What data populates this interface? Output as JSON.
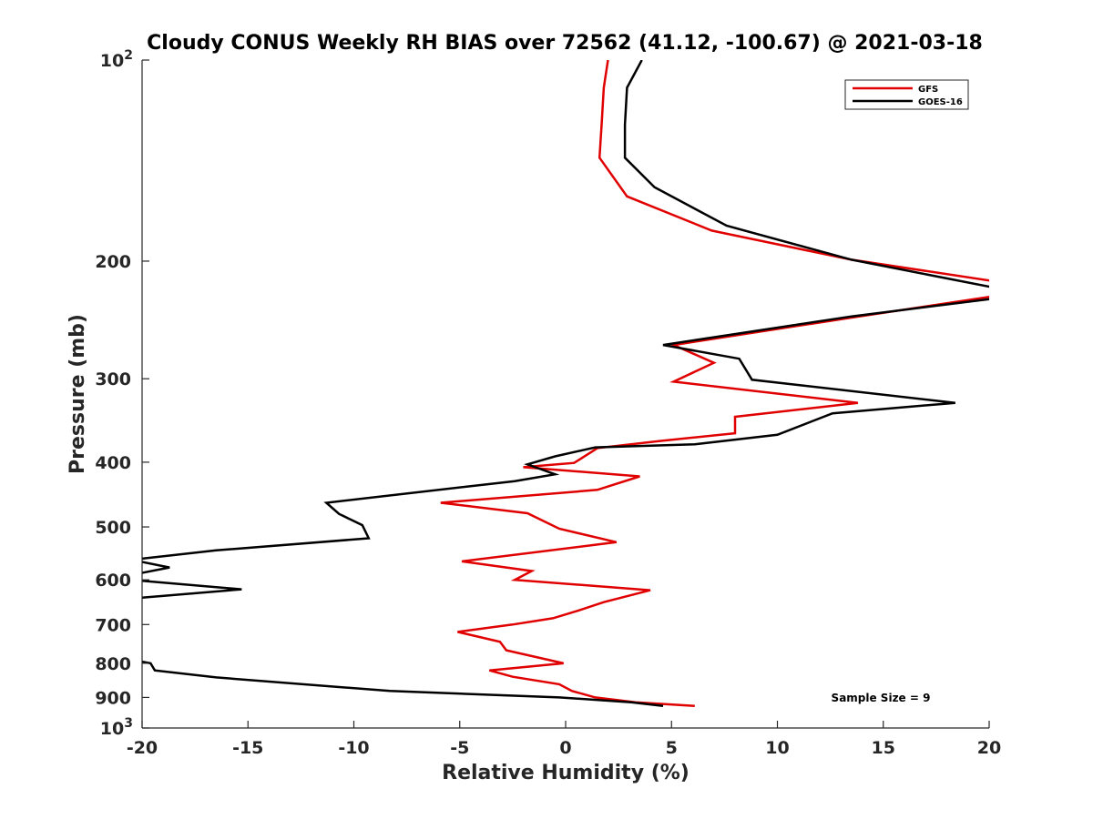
{
  "chart_data": {
    "type": "line",
    "title": "Cloudy CONUS Weekly RH BIAS over 72562 (41.12, -100.67) @ 2021-03-18",
    "xlabel": "Relative Humidity (%)",
    "ylabel": "Pressure (mb)",
    "xlim": [
      -20,
      20
    ],
    "ylim": [
      100,
      1000
    ],
    "y_scale": "log",
    "y_reversed": true,
    "x_ticks": [
      "-20",
      "-15",
      "-10",
      "-5",
      "0",
      "5",
      "10",
      "15",
      "20"
    ],
    "y_ticks": [
      {
        "value": 100,
        "base": "10",
        "exp": "2"
      },
      {
        "value": 200,
        "label": "200"
      },
      {
        "value": 300,
        "label": "300"
      },
      {
        "value": 400,
        "label": "400"
      },
      {
        "value": 500,
        "label": "500"
      },
      {
        "value": 600,
        "label": "600"
      },
      {
        "value": 700,
        "label": "700"
      },
      {
        "value": 800,
        "label": "800"
      },
      {
        "value": 900,
        "label": "900"
      },
      {
        "value": 1000,
        "base": "10",
        "exp": "3"
      }
    ],
    "legend_position": "top-right",
    "grid": false,
    "annotation": "Sample Size = 9",
    "series": [
      {
        "name": "GFS",
        "color": "#e00000",
        "points": [
          [
            2.0,
            100
          ],
          [
            1.8,
            110
          ],
          [
            1.7,
            125
          ],
          [
            1.6,
            140
          ],
          [
            2.9,
            160
          ],
          [
            6.9,
            180
          ],
          [
            13.5,
            199
          ],
          [
            20.5,
            215
          ],
          [
            20.5,
            225
          ],
          [
            13.5,
            243
          ],
          [
            5.1,
            267
          ],
          [
            7.0,
            284
          ],
          [
            5.1,
            303
          ],
          [
            13.8,
            326
          ],
          [
            8.0,
            342
          ],
          [
            8.0,
            362
          ],
          [
            4.4,
            372
          ],
          [
            1.5,
            381
          ],
          [
            0.4,
            401
          ],
          [
            -2.0,
            407
          ],
          [
            3.5,
            420
          ],
          [
            1.5,
            440
          ],
          [
            -5.9,
            460
          ],
          [
            -1.8,
            477
          ],
          [
            -0.3,
            503
          ],
          [
            2.4,
            527
          ],
          [
            -4.9,
            563
          ],
          [
            -1.6,
            582
          ],
          [
            -2.4,
            600
          ],
          [
            4.0,
            622
          ],
          [
            1.8,
            648
          ],
          [
            0.6,
            667
          ],
          [
            -0.6,
            685
          ],
          [
            -2.5,
            700
          ],
          [
            -5.1,
            718
          ],
          [
            -3.1,
            743
          ],
          [
            -2.8,
            765
          ],
          [
            -0.1,
            800
          ],
          [
            -3.6,
            820
          ],
          [
            -2.5,
            838
          ],
          [
            -0.3,
            860
          ],
          [
            0.3,
            880
          ],
          [
            1.4,
            900
          ],
          [
            3.3,
            915
          ],
          [
            6.1,
            927
          ]
        ]
      },
      {
        "name": "GOES-16",
        "color": "#000000",
        "points": [
          [
            3.6,
            100
          ],
          [
            2.9,
            110
          ],
          [
            2.8,
            125
          ],
          [
            2.8,
            140
          ],
          [
            4.2,
            155
          ],
          [
            7.6,
            177
          ],
          [
            13.5,
            199
          ],
          [
            20.5,
            220
          ],
          [
            20.5,
            227
          ],
          [
            13.5,
            242
          ],
          [
            4.6,
            267
          ],
          [
            8.2,
            280
          ],
          [
            8.8,
            301
          ],
          [
            18.4,
            326
          ],
          [
            12.6,
            338
          ],
          [
            10.0,
            364
          ],
          [
            6.1,
            376
          ],
          [
            1.4,
            380
          ],
          [
            -0.5,
            392
          ],
          [
            -1.8,
            403
          ],
          [
            -0.5,
            417
          ],
          [
            -2.4,
            427
          ],
          [
            -11.3,
            460
          ],
          [
            -10.7,
            478
          ],
          [
            -9.6,
            497
          ],
          [
            -9.3,
            520
          ],
          [
            -16.5,
            542
          ],
          [
            -20.5,
            560
          ],
          [
            -18.7,
            575
          ],
          [
            -20.5,
            590
          ],
          [
            -20.5,
            600
          ],
          [
            -15.3,
            620
          ],
          [
            -20.5,
            640
          ],
          [
            -20.5,
            650
          ],
          [
            -20.5,
            790
          ],
          [
            -19.6,
            800
          ],
          [
            -19.4,
            820
          ],
          [
            -16.5,
            840
          ],
          [
            -8.3,
            880
          ],
          [
            -0.3,
            900
          ],
          [
            3.1,
            915
          ],
          [
            4.6,
            927
          ]
        ]
      }
    ]
  }
}
